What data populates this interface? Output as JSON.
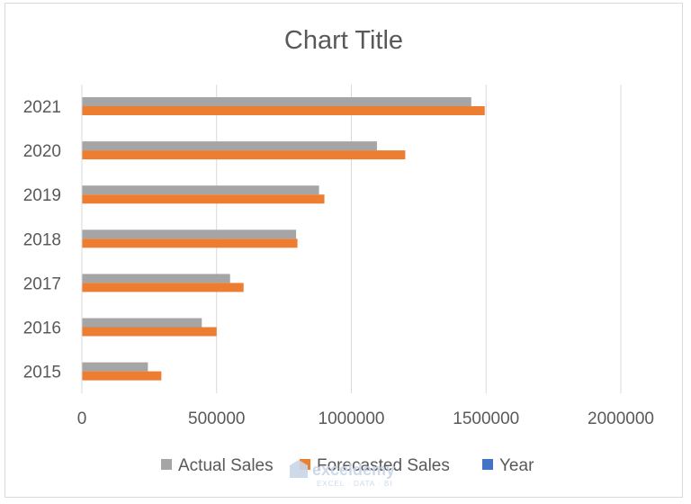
{
  "chart_data": {
    "type": "bar",
    "orientation": "horizontal",
    "title": "Chart Title",
    "categories": [
      "2015",
      "2016",
      "2017",
      "2018",
      "2019",
      "2020",
      "2021"
    ],
    "series": [
      {
        "name": "Actual Sales",
        "color": "#a5a5a5",
        "values": [
          245000,
          445000,
          550000,
          795000,
          880000,
          1095000,
          1445000
        ]
      },
      {
        "name": "Forecasted Sales",
        "color": "#ed7d31",
        "values": [
          295000,
          500000,
          600000,
          800000,
          900000,
          1200000,
          1495000
        ]
      },
      {
        "name": "Year",
        "color": "#4472c4",
        "values": [
          2015,
          2016,
          2017,
          2018,
          2019,
          2020,
          2021
        ]
      }
    ],
    "xlim": [
      0,
      2000000
    ],
    "x_ticks": [
      0,
      500000,
      1000000,
      1500000,
      2000000
    ],
    "x_tick_labels": [
      "0",
      "500000",
      "1000000",
      "1500000",
      "2000000"
    ],
    "grid": "vertical",
    "legend_position": "bottom"
  },
  "watermark": {
    "name": "exceldemy",
    "tagline": "EXCEL · DATA · BI"
  }
}
